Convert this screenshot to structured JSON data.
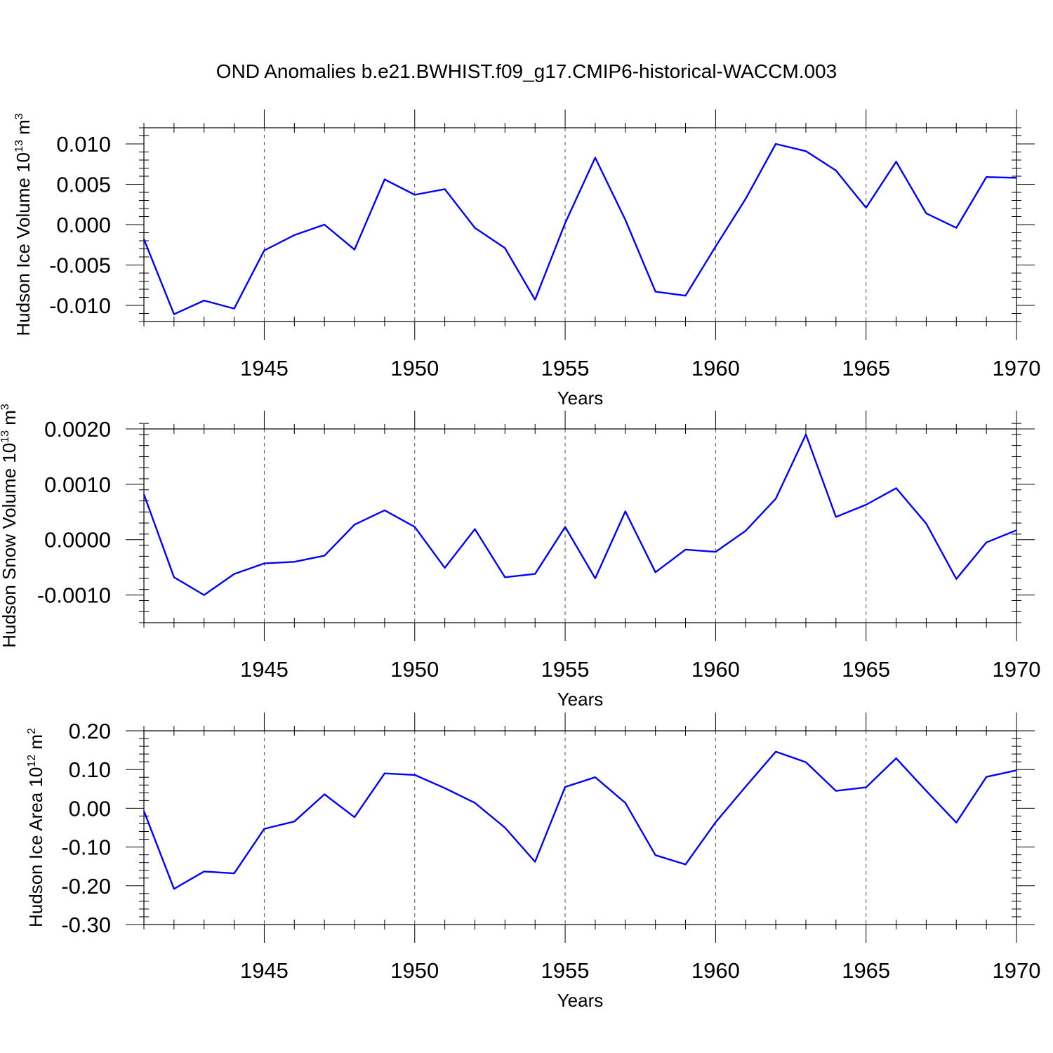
{
  "title": "OND Anomalies b.e21.BWHIST.f09_g17.CMIP6-historical-WACCM.003",
  "colors": {
    "series": "#0000ff",
    "frame": "#000000",
    "grid": "#555555"
  },
  "chart_data": [
    {
      "type": "line",
      "ylabel": "Hudson Ice Volume",
      "ylabel_unit": "10",
      "ylabel_exp": "13",
      "ylabel_tail": " m",
      "ylabel_tail_exp": "3",
      "xlabel": "Years",
      "xlim": [
        1941,
        1970
      ],
      "ylim": [
        -0.012,
        0.012
      ],
      "yticks": [
        -0.01,
        -0.005,
        0.0,
        0.005,
        0.01
      ],
      "yticklabels": [
        "-0.010",
        "-0.005",
        "0.000",
        "0.005",
        "0.010"
      ],
      "yminor": 0.001,
      "xticks": [
        1945,
        1950,
        1955,
        1960,
        1965,
        1970
      ],
      "xticklabels": [
        "1945",
        "1950",
        "1955",
        "1960",
        "1965",
        "1970"
      ],
      "grid": "vertical-dashed",
      "x": [
        1941,
        1942,
        1943,
        1944,
        1945,
        1946,
        1947,
        1948,
        1949,
        1950,
        1951,
        1952,
        1953,
        1954,
        1955,
        1956,
        1957,
        1958,
        1959,
        1960,
        1961,
        1962,
        1963,
        1964,
        1965,
        1966,
        1967,
        1968,
        1969,
        1970
      ],
      "values": [
        -0.0018,
        -0.0111,
        -0.0094,
        -0.0104,
        -0.0032,
        -0.0013,
        0.0,
        -0.0031,
        0.0056,
        0.0037,
        0.0044,
        -0.0004,
        -0.0029,
        -0.0093,
        0.0002,
        0.0083,
        0.0006,
        -0.0083,
        -0.0088,
        -0.0027,
        0.0032,
        0.01,
        0.0091,
        0.0067,
        0.0021,
        0.0078,
        0.0014,
        -0.0004,
        0.0059,
        0.0058
      ]
    },
    {
      "type": "line",
      "ylabel": "Hudson Snow Volume",
      "ylabel_unit": "10",
      "ylabel_exp": "13",
      "ylabel_tail": " m",
      "ylabel_tail_exp": "3",
      "xlabel": "Years",
      "xlim": [
        1941,
        1970
      ],
      "ylim": [
        -0.0015,
        0.002
      ],
      "yticks": [
        -0.001,
        0.0,
        0.001,
        0.002
      ],
      "yticklabels": [
        "-0.0010",
        "0.0000",
        "0.0010",
        "0.0020"
      ],
      "yminor": 0.0002,
      "xticks": [
        1945,
        1950,
        1955,
        1960,
        1965,
        1970
      ],
      "xticklabels": [
        "1945",
        "1950",
        "1955",
        "1960",
        "1965",
        "1970"
      ],
      "grid": "vertical-dashed",
      "x": [
        1941,
        1942,
        1943,
        1944,
        1945,
        1946,
        1947,
        1948,
        1949,
        1950,
        1951,
        1952,
        1953,
        1954,
        1955,
        1956,
        1957,
        1958,
        1959,
        1960,
        1961,
        1962,
        1963,
        1964,
        1965,
        1966,
        1967,
        1968,
        1969,
        1970
      ],
      "values": [
        0.00082,
        -0.00068,
        -0.001,
        -0.00062,
        -0.00043,
        -0.0004,
        -0.00029,
        0.00027,
        0.00053,
        0.00023,
        -0.00051,
        0.00019,
        -0.00068,
        -0.00062,
        0.00023,
        -0.0007,
        0.00051,
        -0.00059,
        -0.00018,
        -0.00022,
        0.00016,
        0.00074,
        0.0019,
        0.00041,
        0.00063,
        0.00093,
        0.00029,
        -0.00071,
        -5e-05,
        0.00017
      ]
    },
    {
      "type": "line",
      "ylabel": "Hudson Ice Area",
      "ylabel_unit": "10",
      "ylabel_exp": "12",
      "ylabel_tail": " m",
      "ylabel_tail_exp": "2",
      "xlabel": "Years",
      "xlim": [
        1941,
        1970
      ],
      "ylim": [
        -0.3,
        0.2
      ],
      "yticks": [
        -0.3,
        -0.2,
        -0.1,
        0.0,
        0.1,
        0.2
      ],
      "yticklabels": [
        "-0.30",
        "-0.20",
        "-0.10",
        "0.00",
        "0.10",
        "0.20"
      ],
      "yminor": 0.02,
      "xticks": [
        1945,
        1950,
        1955,
        1960,
        1965,
        1970
      ],
      "xticklabels": [
        "1945",
        "1950",
        "1955",
        "1960",
        "1965",
        "1970"
      ],
      "grid": "vertical-dashed",
      "x": [
        1941,
        1942,
        1943,
        1944,
        1945,
        1946,
        1947,
        1948,
        1949,
        1950,
        1951,
        1952,
        1953,
        1954,
        1955,
        1956,
        1957,
        1958,
        1959,
        1960,
        1961,
        1962,
        1963,
        1964,
        1965,
        1966,
        1967,
        1968,
        1969,
        1970
      ],
      "values": [
        -0.007,
        -0.208,
        -0.163,
        -0.168,
        -0.053,
        -0.034,
        0.036,
        -0.023,
        0.09,
        0.086,
        0.052,
        0.014,
        -0.05,
        -0.138,
        0.055,
        0.08,
        0.014,
        -0.121,
        -0.145,
        -0.036,
        0.056,
        0.146,
        0.119,
        0.045,
        0.054,
        0.129,
        0.045,
        -0.037,
        0.081,
        0.098
      ]
    }
  ]
}
